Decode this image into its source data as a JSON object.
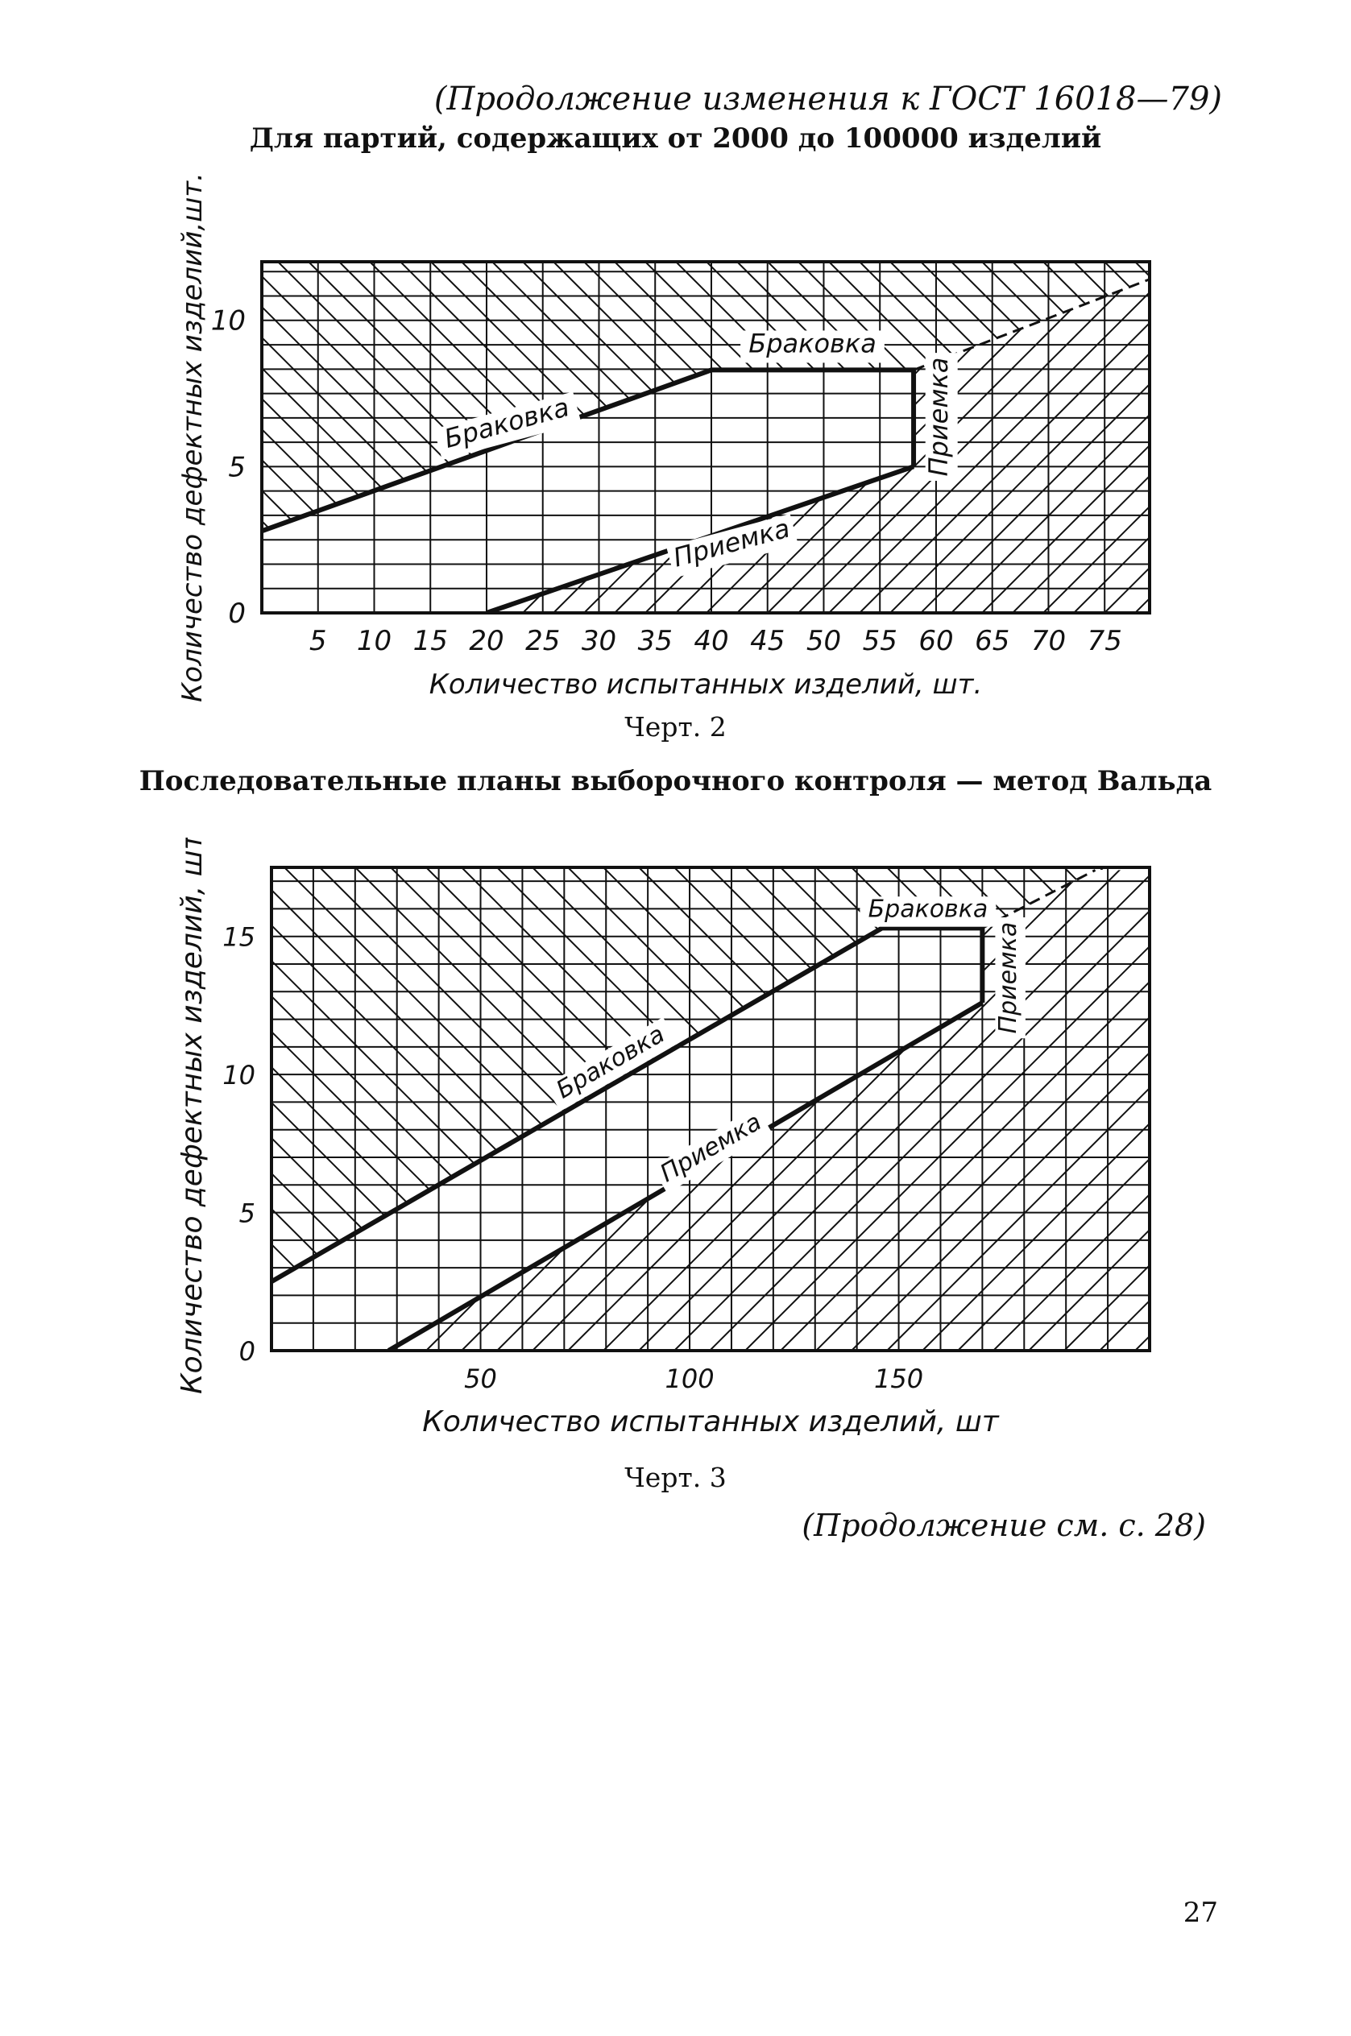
{
  "header": "(Продолжение изменения к ГОСТ 16018—79)",
  "title_1": "Для партий, содержащих от 2000 до 100000 изделий",
  "caption_1": "Черт. 2",
  "title_2": "Последовательные планы выборочного контроля — метод Вальда",
  "caption_2": "Черт. 3",
  "footer": "(Продолжение см. с. 28)",
  "page_number": "27",
  "chart_data": [
    {
      "type": "line",
      "xlabel": "Количество испытанных изделий, шт.",
      "ylabel": "Количество дефектных изделий,шт.",
      "xlim": [
        0,
        79
      ],
      "ylim": [
        0,
        12
      ],
      "x_ticks": [
        5,
        10,
        15,
        20,
        25,
        30,
        35,
        40,
        45,
        50,
        55,
        60,
        65,
        70,
        75
      ],
      "y_ticks": [
        0,
        5,
        10
      ],
      "grid": true,
      "series": [
        {
          "x": [
            0,
            40,
            58,
            58
          ],
          "y": [
            2.8,
            8.3,
            8.3,
            5.0
          ]
        },
        {
          "x": [
            20,
            58
          ],
          "y": [
            0,
            5.0
          ]
        },
        {
          "x": [
            58,
            79
          ],
          "y": [
            8.3,
            11.4
          ]
        }
      ],
      "annotations": [
        {
          "text": "Браковка",
          "x": 22,
          "y": 6.2,
          "angle": -15
        },
        {
          "text": "Браковка",
          "x": 49,
          "y": 8.9,
          "angle": 0
        },
        {
          "text": "Приемка",
          "x": 61,
          "y": 6.7,
          "angle": -90
        },
        {
          "text": "Приемка",
          "x": 42,
          "y": 2.1,
          "angle": -15
        }
      ]
    },
    {
      "type": "line",
      "xlabel": "Количество испытанных изделий, шт",
      "ylabel": "Количество дефектных изделий, шт.",
      "xlim": [
        0,
        210
      ],
      "ylim": [
        0,
        17.5
      ],
      "x_ticks": [
        50,
        100,
        150
      ],
      "y_ticks": [
        0,
        5,
        10,
        15
      ],
      "grid": true,
      "series": [
        {
          "x": [
            0,
            146,
            170,
            170
          ],
          "y": [
            2.5,
            15.3,
            15.3,
            12.6
          ]
        },
        {
          "x": [
            28,
            170
          ],
          "y": [
            0,
            12.6
          ]
        },
        {
          "x": [
            170,
            197
          ],
          "y": [
            15.3,
            17.4
          ]
        }
      ],
      "annotations": [
        {
          "text": "Браковка",
          "x": 82,
          "y": 10.2,
          "angle": -30
        },
        {
          "text": "Браковка",
          "x": 157,
          "y": 15.7,
          "angle": 0
        },
        {
          "text": "Приемка",
          "x": 178,
          "y": 13.5,
          "angle": -90
        },
        {
          "text": "Приемка",
          "x": 106,
          "y": 7.1,
          "angle": -30
        }
      ]
    }
  ]
}
